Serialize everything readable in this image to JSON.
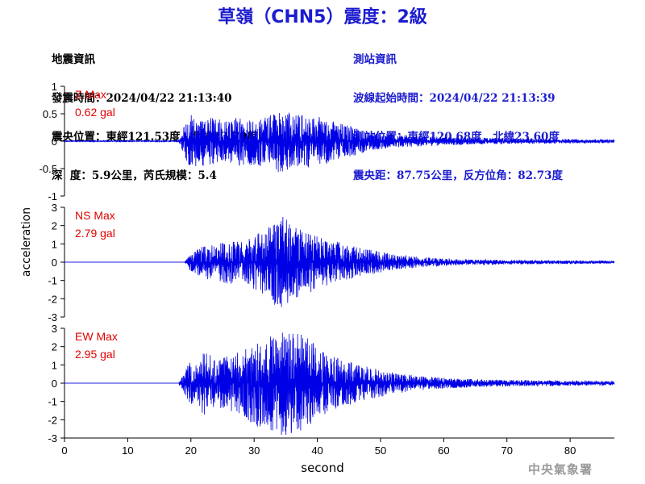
{
  "title": "草嶺（CHN5）震度：2級",
  "quake_info": {
    "heading": "地震資訊",
    "time_line": "發震時間：2024/04/22 21:13:40",
    "location_line": "震央位置：東經121.53度，北緯23.70度",
    "depth_line": "深  度：5.9公里，芮氏規模：5.4"
  },
  "station_info": {
    "heading": "測站資訊",
    "start_line": "波線起始時間：2024/04/22 21:13:39",
    "location_line": "測站位置：東經120.68度，北緯23.60度",
    "distance_line": "震央距：87.75公里，反方位角：82.73度"
  },
  "footer": {
    "agency": "中央氣象署"
  },
  "colors": {
    "trace": "#0000e6",
    "label": "#e00000",
    "title": "#1c1ccf"
  },
  "chart_data": {
    "type": "line",
    "xlabel": "second",
    "ylabel": "acceleration",
    "xlim": [
      0,
      87
    ],
    "xticks": [
      "0",
      "10",
      "20",
      "30",
      "40",
      "50",
      "60",
      "70",
      "80"
    ],
    "panels": [
      {
        "name": "Z Max",
        "max_text": "0.62 gal",
        "ylim": [
          -1,
          1
        ],
        "yticks": [
          "1",
          "0.5",
          "0",
          "-0.5",
          "-1"
        ],
        "peak": 0.62,
        "envelope": [
          [
            0,
            0.01
          ],
          [
            18,
            0.01
          ],
          [
            19,
            0.3
          ],
          [
            20,
            0.5
          ],
          [
            22,
            0.45
          ],
          [
            25,
            0.4
          ],
          [
            28,
            0.45
          ],
          [
            30,
            0.45
          ],
          [
            32,
            0.45
          ],
          [
            34,
            0.6
          ],
          [
            36,
            0.5
          ],
          [
            38,
            0.5
          ],
          [
            40,
            0.45
          ],
          [
            42,
            0.4
          ],
          [
            45,
            0.3
          ],
          [
            48,
            0.18
          ],
          [
            52,
            0.12
          ],
          [
            56,
            0.1
          ],
          [
            60,
            0.08
          ],
          [
            65,
            0.06
          ],
          [
            70,
            0.05
          ],
          [
            80,
            0.04
          ],
          [
            87,
            0.03
          ]
        ]
      },
      {
        "name": "NS Max",
        "max_text": "2.79 gal",
        "ylim": [
          -3,
          3
        ],
        "yticks": [
          "3",
          "2",
          "1",
          "0",
          "-1",
          "-2",
          "-3"
        ],
        "peak": 2.79,
        "envelope": [
          [
            0,
            0.0
          ],
          [
            19,
            0.0
          ],
          [
            20,
            0.5
          ],
          [
            22,
            0.9
          ],
          [
            24,
            1.0
          ],
          [
            26,
            1.2
          ],
          [
            28,
            1.1
          ],
          [
            30,
            1.5
          ],
          [
            32,
            1.9
          ],
          [
            34,
            2.6
          ],
          [
            36,
            2.2
          ],
          [
            38,
            1.8
          ],
          [
            40,
            1.5
          ],
          [
            42,
            1.2
          ],
          [
            45,
            1.0
          ],
          [
            48,
            0.7
          ],
          [
            52,
            0.45
          ],
          [
            56,
            0.3
          ],
          [
            60,
            0.2
          ],
          [
            65,
            0.15
          ],
          [
            70,
            0.12
          ],
          [
            80,
            0.1
          ],
          [
            87,
            0.08
          ]
        ]
      },
      {
        "name": "EW Max",
        "max_text": "2.95 gal",
        "ylim": [
          -3,
          3
        ],
        "yticks": [
          "3",
          "2",
          "1",
          "0",
          "-1",
          "-2",
          "-3"
        ],
        "peak": 2.95,
        "envelope": [
          [
            0,
            0.0
          ],
          [
            18,
            0.0
          ],
          [
            19,
            0.6
          ],
          [
            20,
            1.3
          ],
          [
            21,
            1.0
          ],
          [
            22,
            1.8
          ],
          [
            24,
            1.3
          ],
          [
            26,
            1.5
          ],
          [
            28,
            1.8
          ],
          [
            30,
            2.3
          ],
          [
            32,
            2.7
          ],
          [
            34,
            2.9
          ],
          [
            36,
            2.8
          ],
          [
            38,
            2.6
          ],
          [
            40,
            2.0
          ],
          [
            42,
            1.5
          ],
          [
            45,
            1.2
          ],
          [
            48,
            0.9
          ],
          [
            52,
            0.6
          ],
          [
            56,
            0.4
          ],
          [
            60,
            0.3
          ],
          [
            65,
            0.22
          ],
          [
            70,
            0.18
          ],
          [
            80,
            0.15
          ],
          [
            87,
            0.12
          ]
        ]
      }
    ]
  }
}
